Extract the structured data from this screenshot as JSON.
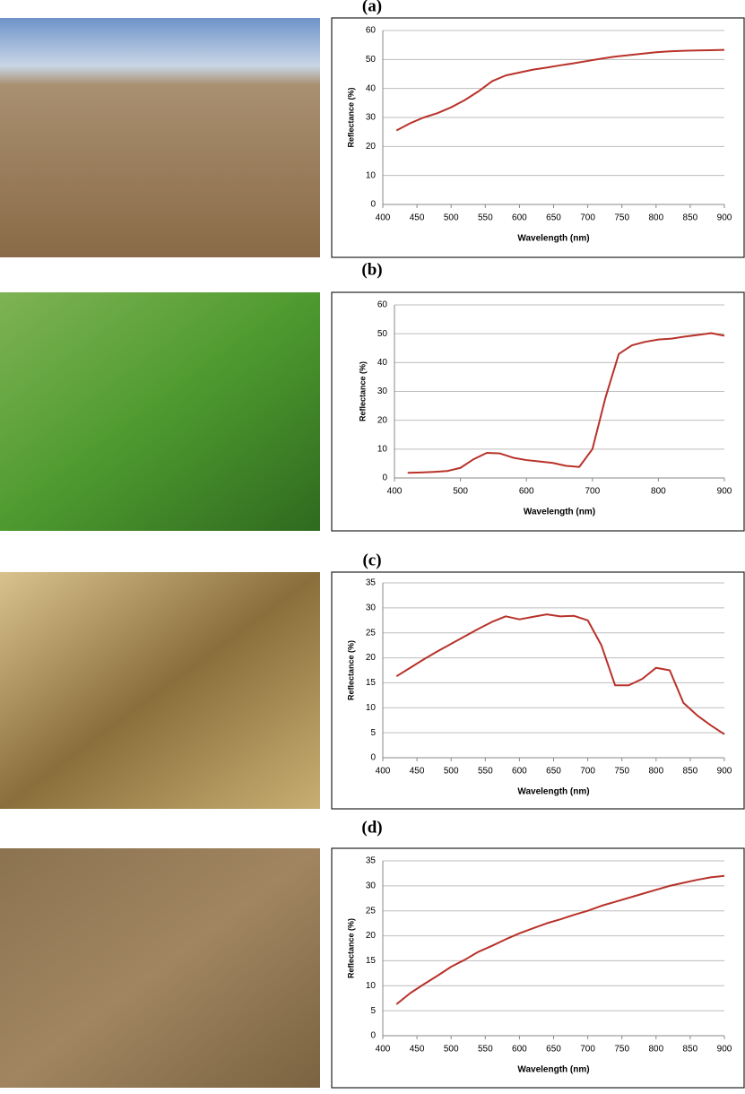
{
  "chart_data": [
    {
      "type": "line",
      "title": "(a)",
      "xlabel": "Wavelength (nm)",
      "ylabel": "Reflectance (%)",
      "x": [
        420,
        440,
        460,
        480,
        500,
        520,
        540,
        560,
        580,
        600,
        620,
        640,
        660,
        680,
        700,
        720,
        740,
        760,
        780,
        800,
        820,
        840,
        860,
        880,
        900
      ],
      "series": [
        {
          "name": "Reflectance",
          "color": "#b8322a",
          "values": [
            25.5,
            28,
            30,
            31.5,
            33.5,
            36,
            39,
            42.5,
            44.5,
            45.5,
            46.5,
            47.2,
            48,
            48.7,
            49.5,
            50.3,
            51,
            51.5,
            52,
            52.5,
            52.8,
            53,
            53.1,
            53.2,
            53.3
          ]
        }
      ],
      "xlim": [
        400,
        900
      ],
      "xticks": [
        400,
        450,
        500,
        550,
        600,
        650,
        700,
        750,
        800,
        850,
        900
      ],
      "ylim": [
        0,
        60
      ],
      "yticks": [
        0,
        10,
        20,
        30,
        40,
        50,
        60
      ],
      "grid": true
    },
    {
      "type": "line",
      "title": "(b)",
      "xlabel": "Wavelength (nm)",
      "ylabel": "Reflectance (%)",
      "x": [
        420,
        440,
        460,
        480,
        500,
        520,
        540,
        560,
        580,
        600,
        620,
        640,
        660,
        680,
        700,
        720,
        740,
        760,
        780,
        800,
        820,
        840,
        860,
        880,
        900
      ],
      "series": [
        {
          "name": "Reflectance",
          "color": "#b8322a",
          "values": [
            1.8,
            1.9,
            2.1,
            2.4,
            3.5,
            6.5,
            8.7,
            8.5,
            7,
            6.2,
            5.7,
            5.2,
            4.2,
            3.8,
            10,
            28,
            43,
            46,
            47.2,
            48,
            48.3,
            49,
            49.6,
            50.2,
            49.3
          ]
        }
      ],
      "xlim": [
        400,
        900
      ],
      "xticks": [
        400,
        500,
        600,
        700,
        800,
        900
      ],
      "ylim": [
        0,
        60
      ],
      "yticks": [
        0,
        10,
        20,
        30,
        40,
        50,
        60
      ],
      "grid": true
    },
    {
      "type": "line",
      "title": "(c)",
      "xlabel": "Wavelength (nm)",
      "ylabel": "Reflectance (%)",
      "x": [
        420,
        440,
        460,
        480,
        500,
        520,
        540,
        560,
        580,
        600,
        620,
        640,
        660,
        680,
        700,
        720,
        740,
        760,
        780,
        800,
        820,
        840,
        860,
        880,
        900
      ],
      "series": [
        {
          "name": "Reflectance",
          "color": "#b8322a",
          "values": [
            16.3,
            18,
            19.7,
            21.3,
            22.8,
            24.3,
            25.8,
            27.2,
            28.3,
            27.7,
            28.2,
            28.7,
            28.3,
            28.4,
            27.5,
            22.5,
            14.5,
            14.5,
            15.8,
            18,
            17.5,
            11,
            8.5,
            6.5,
            4.7
          ]
        }
      ],
      "xlim": [
        400,
        900
      ],
      "xticks": [
        400,
        450,
        500,
        550,
        600,
        650,
        700,
        750,
        800,
        850,
        900
      ],
      "ylim": [
        0,
        35
      ],
      "yticks": [
        0,
        5,
        10,
        15,
        20,
        25,
        30,
        35
      ],
      "grid": true
    },
    {
      "type": "line",
      "title": "(d)",
      "xlabel": "Wavelength (nm)",
      "ylabel": "Reflectance (%)",
      "x": [
        420,
        440,
        460,
        480,
        500,
        520,
        540,
        560,
        580,
        600,
        620,
        640,
        660,
        680,
        700,
        720,
        740,
        760,
        780,
        800,
        820,
        840,
        860,
        880,
        900
      ],
      "series": [
        {
          "name": "Reflectance",
          "color": "#b8322a",
          "values": [
            6.3,
            8.5,
            10.3,
            12,
            13.8,
            15.2,
            16.8,
            18,
            19.3,
            20.5,
            21.5,
            22.5,
            23.3,
            24.2,
            25,
            26,
            26.8,
            27.6,
            28.4,
            29.2,
            30,
            30.6,
            31.2,
            31.7,
            32
          ]
        }
      ],
      "xlim": [
        400,
        900
      ],
      "xticks": [
        400,
        450,
        500,
        550,
        600,
        650,
        700,
        750,
        800,
        850,
        900
      ],
      "ylim": [
        0,
        35
      ],
      "yticks": [
        0,
        5,
        10,
        15,
        20,
        25,
        30,
        35
      ],
      "grid": true
    }
  ]
}
